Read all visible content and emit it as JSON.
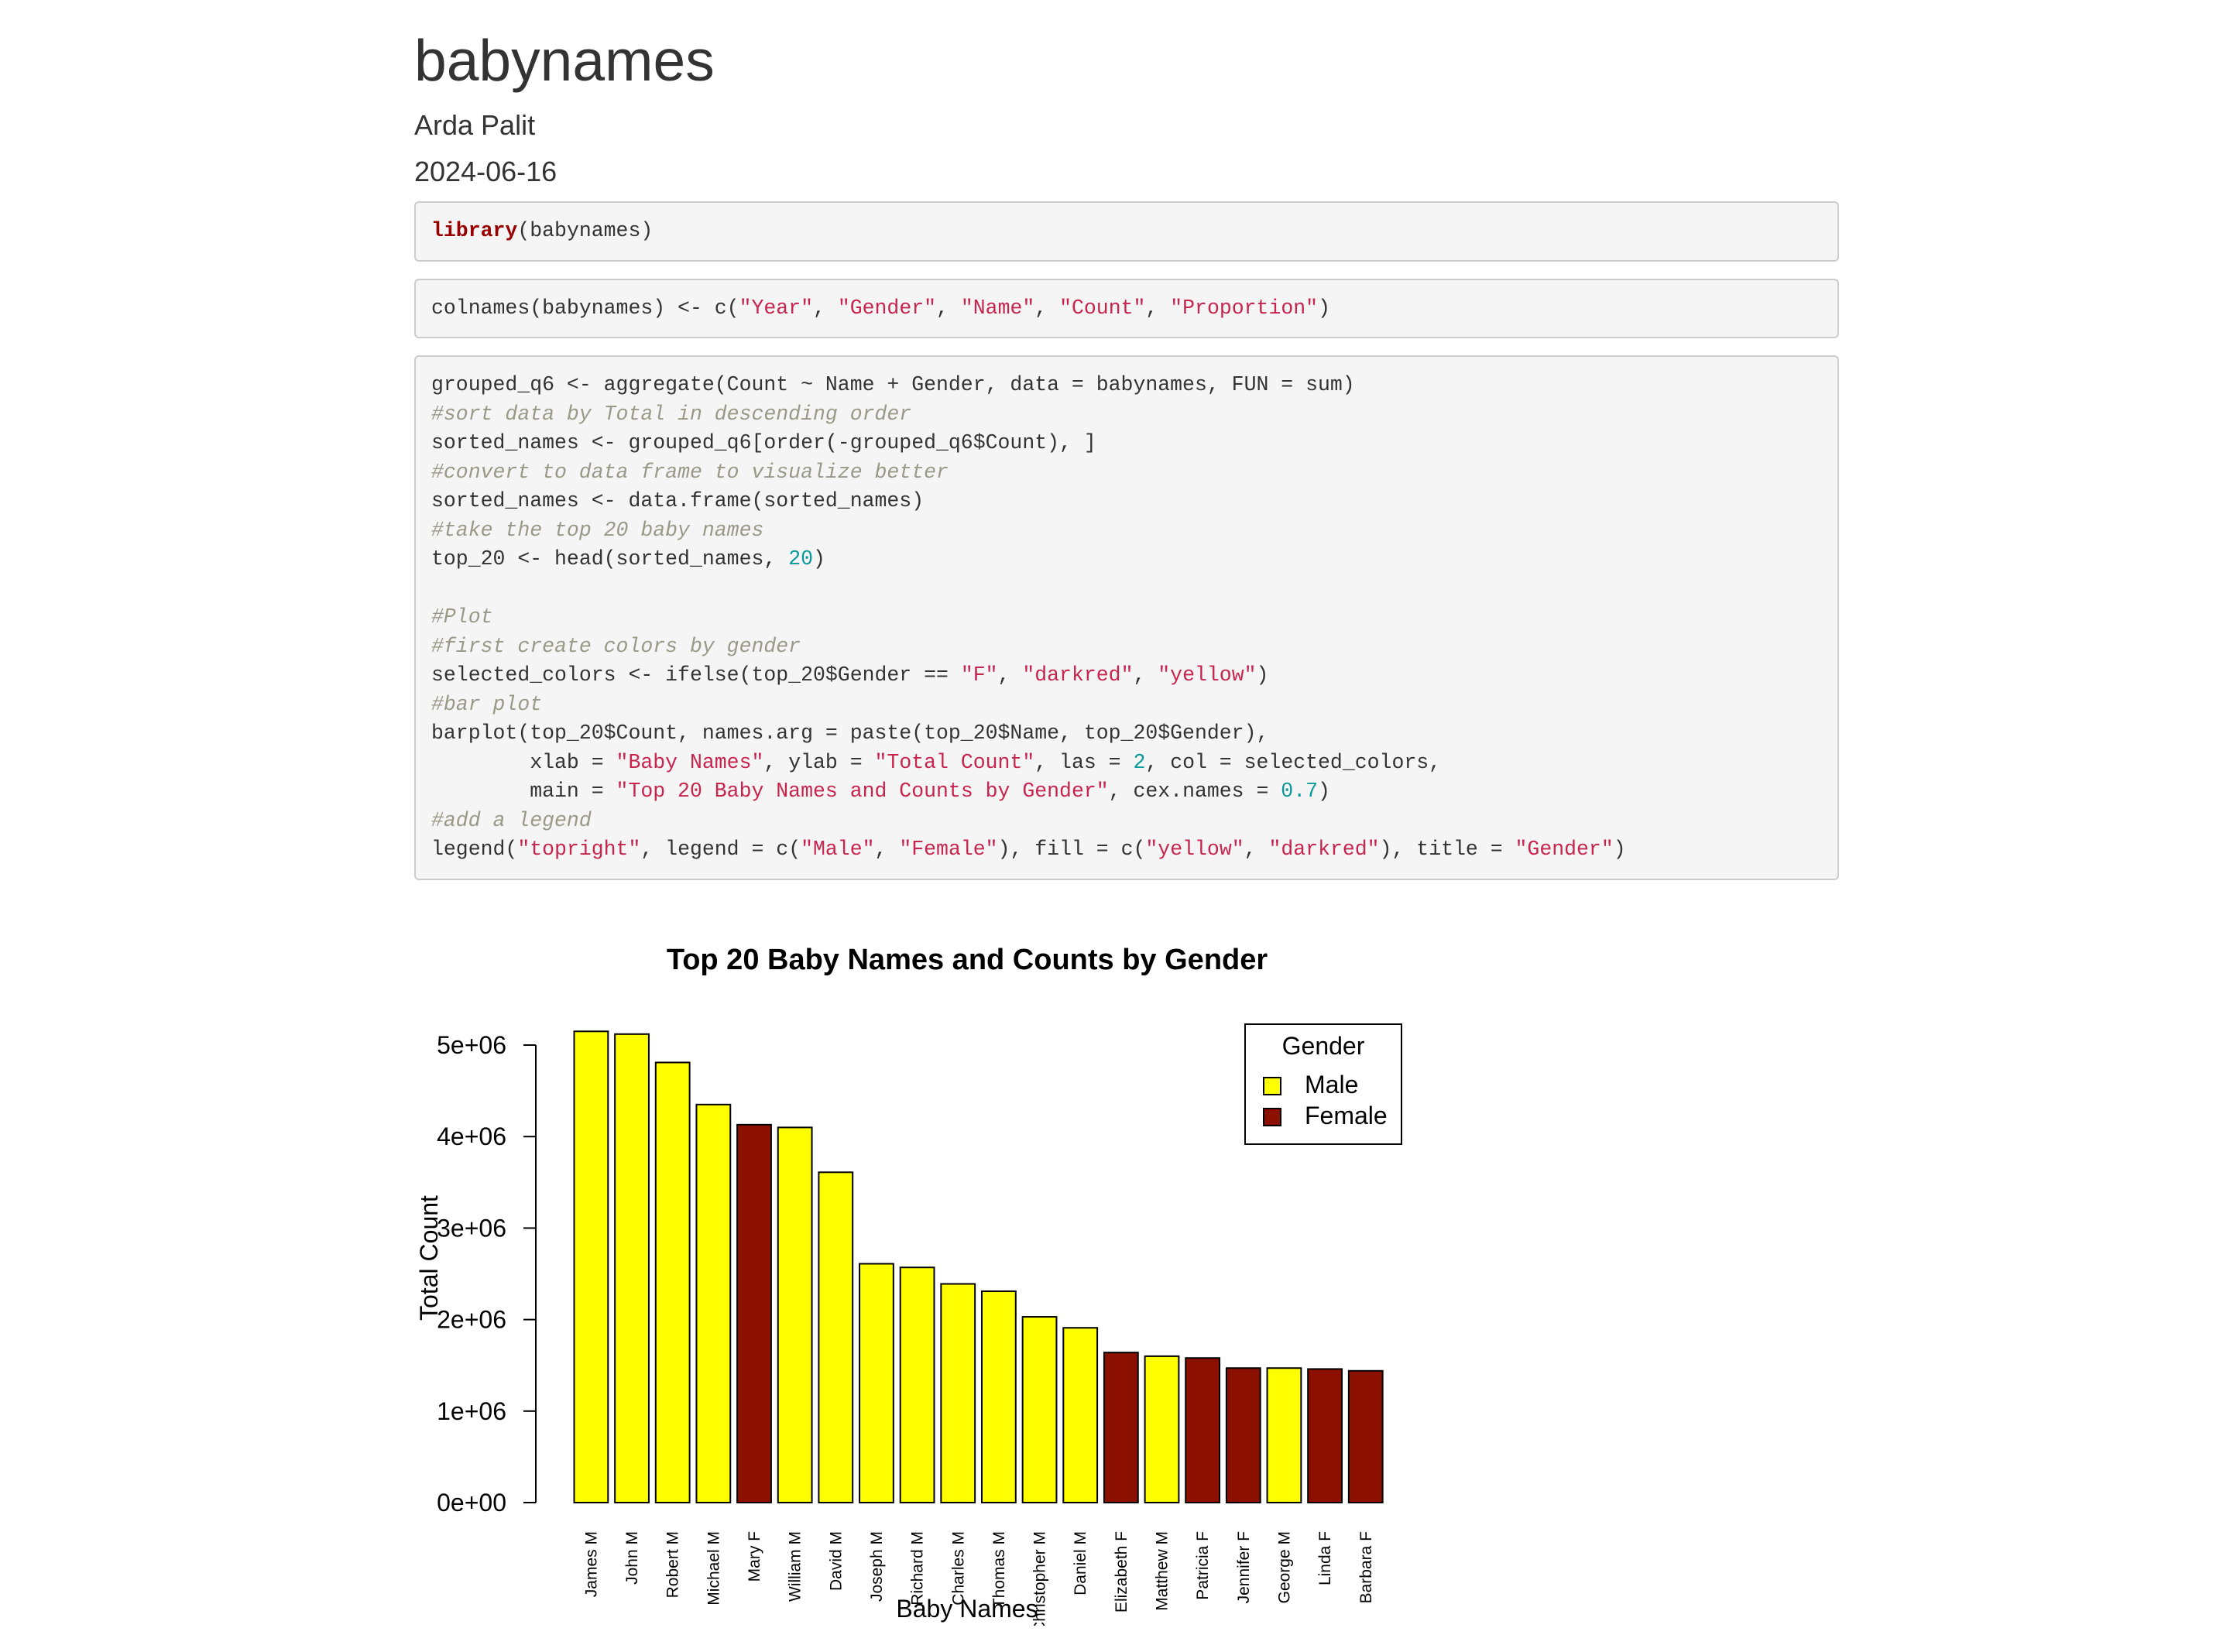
{
  "doc": {
    "title": "babynames",
    "author": "Arda Palit",
    "date": "2024-06-16"
  },
  "code_blocks": [
    [
      [
        {
          "t": "library",
          "c": "kw"
        },
        {
          "t": "(babynames)",
          "c": ""
        }
      ]
    ],
    [
      [
        {
          "t": "colnames(babynames) <- c(",
          "c": ""
        },
        {
          "t": "\"Year\"",
          "c": "str"
        },
        {
          "t": ", ",
          "c": ""
        },
        {
          "t": "\"Gender\"",
          "c": "str"
        },
        {
          "t": ", ",
          "c": ""
        },
        {
          "t": "\"Name\"",
          "c": "str"
        },
        {
          "t": ", ",
          "c": ""
        },
        {
          "t": "\"Count\"",
          "c": "str"
        },
        {
          "t": ", ",
          "c": ""
        },
        {
          "t": "\"Proportion\"",
          "c": "str"
        },
        {
          "t": ")",
          "c": ""
        }
      ]
    ],
    [
      [
        {
          "t": "grouped_q6 <- aggregate(Count ~ Name + Gender, data = babynames, FUN = sum)",
          "c": ""
        }
      ],
      [
        {
          "t": "#sort data by Total in descending order",
          "c": "cm"
        }
      ],
      [
        {
          "t": "sorted_names <- grouped_q6[order(-grouped_q6$Count), ]",
          "c": ""
        }
      ],
      [
        {
          "t": "#convert to data frame to visualize better",
          "c": "cm"
        }
      ],
      [
        {
          "t": "sorted_names <- data.frame(sorted_names)",
          "c": ""
        }
      ],
      [
        {
          "t": "#take the top 20 baby names",
          "c": "cm"
        }
      ],
      [
        {
          "t": "top_20 <- head(sorted_names, ",
          "c": ""
        },
        {
          "t": "20",
          "c": "num"
        },
        {
          "t": ")",
          "c": ""
        }
      ],
      [],
      [
        {
          "t": "#Plot",
          "c": "cm"
        }
      ],
      [
        {
          "t": "#first create colors by gender",
          "c": "cm"
        }
      ],
      [
        {
          "t": "selected_colors <- ifelse(top_20$Gender == ",
          "c": ""
        },
        {
          "t": "\"F\"",
          "c": "str"
        },
        {
          "t": ", ",
          "c": ""
        },
        {
          "t": "\"darkred\"",
          "c": "str"
        },
        {
          "t": ", ",
          "c": ""
        },
        {
          "t": "\"yellow\"",
          "c": "str"
        },
        {
          "t": ")",
          "c": ""
        }
      ],
      [
        {
          "t": "#bar plot",
          "c": "cm"
        }
      ],
      [
        {
          "t": "barplot(top_20$Count, names.arg = paste(top_20$Name, top_20$Gender),",
          "c": ""
        }
      ],
      [
        {
          "t": "        xlab = ",
          "c": ""
        },
        {
          "t": "\"Baby Names\"",
          "c": "str"
        },
        {
          "t": ", ylab = ",
          "c": ""
        },
        {
          "t": "\"Total Count\"",
          "c": "str"
        },
        {
          "t": ", las = ",
          "c": ""
        },
        {
          "t": "2",
          "c": "num"
        },
        {
          "t": ", col = selected_colors,",
          "c": ""
        }
      ],
      [
        {
          "t": "        main = ",
          "c": ""
        },
        {
          "t": "\"Top 20 Baby Names and Counts by Gender\"",
          "c": "str"
        },
        {
          "t": ", cex.names = ",
          "c": ""
        },
        {
          "t": "0.7",
          "c": "num"
        },
        {
          "t": ")",
          "c": ""
        }
      ],
      [
        {
          "t": "#add a legend",
          "c": "cm"
        }
      ],
      [
        {
          "t": "legend(",
          "c": ""
        },
        {
          "t": "\"topright\"",
          "c": "str"
        },
        {
          "t": ", legend = c(",
          "c": ""
        },
        {
          "t": "\"Male\"",
          "c": "str"
        },
        {
          "t": ", ",
          "c": ""
        },
        {
          "t": "\"Female\"",
          "c": "str"
        },
        {
          "t": "), fill = c(",
          "c": ""
        },
        {
          "t": "\"yellow\"",
          "c": "str"
        },
        {
          "t": ", ",
          "c": ""
        },
        {
          "t": "\"darkred\"",
          "c": "str"
        },
        {
          "t": "), title = ",
          "c": ""
        },
        {
          "t": "\"Gender\"",
          "c": "str"
        },
        {
          "t": ")",
          "c": ""
        }
      ]
    ]
  ],
  "colors": {
    "male": "#ffff00",
    "female": "#8b1000"
  },
  "chart_data": {
    "type": "bar",
    "title": "Top 20 Baby Names and Counts by Gender",
    "xlabel": "Baby Names",
    "ylabel": "Total Count",
    "ylim": [
      0,
      5000000
    ],
    "yticks": [
      0,
      1000000,
      2000000,
      3000000,
      4000000,
      5000000
    ],
    "ytick_labels": [
      "0e+00",
      "1e+06",
      "2e+06",
      "3e+06",
      "4e+06",
      "5e+06"
    ],
    "categories": [
      "James M",
      "John M",
      "Robert M",
      "Michael M",
      "Mary F",
      "William M",
      "David M",
      "Joseph M",
      "Richard M",
      "Charles M",
      "Thomas M",
      "Christopher M",
      "Daniel M",
      "Elizabeth F",
      "Matthew M",
      "Patricia F",
      "Jennifer F",
      "George M",
      "Linda F",
      "Barbara F"
    ],
    "values": [
      5150000,
      5120000,
      4810000,
      4350000,
      4130000,
      4100000,
      3610000,
      2610000,
      2570000,
      2390000,
      2310000,
      2030000,
      1910000,
      1640000,
      1600000,
      1580000,
      1470000,
      1470000,
      1460000,
      1440000
    ],
    "genders": [
      "M",
      "M",
      "M",
      "M",
      "F",
      "M",
      "M",
      "M",
      "M",
      "M",
      "M",
      "M",
      "M",
      "F",
      "M",
      "F",
      "F",
      "M",
      "F",
      "F"
    ],
    "legend": {
      "title": "Gender",
      "position": "top-right",
      "entries": [
        {
          "label": "Male",
          "color": "#ffff00"
        },
        {
          "label": "Female",
          "color": "#8b1000"
        }
      ]
    }
  }
}
